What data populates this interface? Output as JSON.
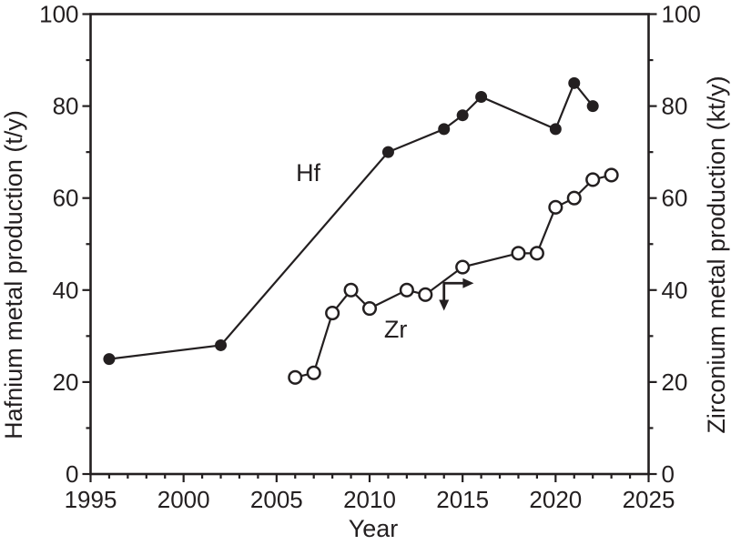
{
  "figure": {
    "background": "#ffffff"
  },
  "chart_data": {
    "type": "line",
    "title": "",
    "xlabel": "Year",
    "ylabel_left": "Hafnium metal production (t/y)",
    "ylabel_right": "Zirconium metal production (kt/y)",
    "xlim": [
      1995,
      2025
    ],
    "ylim_left": [
      0,
      100
    ],
    "ylim_right": [
      0,
      100
    ],
    "x_major_ticks": [
      1995,
      2000,
      2005,
      2010,
      2015,
      2020,
      2025
    ],
    "x_minor_step": 1,
    "y_major_ticks": [
      0,
      20,
      40,
      60,
      80,
      100
    ],
    "y_minor_step": 10,
    "grid": false,
    "legend_position": "none",
    "colors": {
      "ink": "#231f20",
      "background": "#ffffff"
    },
    "series": [
      {
        "name": "Hf",
        "axis": "left",
        "marker": "filled-circle",
        "x": [
          1996,
          2002,
          2011,
          2014,
          2015,
          2016,
          2020,
          2021,
          2022
        ],
        "y": [
          25,
          28,
          70,
          75,
          78,
          82,
          75,
          85,
          80
        ],
        "label": {
          "text": "Hf",
          "x": 2006.7,
          "y": 65.5
        }
      },
      {
        "name": "Zr",
        "axis": "right",
        "marker": "open-circle",
        "x": [
          2006,
          2007,
          2008,
          2009,
          2010,
          2012,
          2013,
          2015,
          2018,
          2019,
          2020,
          2021,
          2022,
          2023
        ],
        "y": [
          21,
          22,
          35,
          40,
          36,
          40,
          39,
          45,
          48,
          48,
          58,
          60,
          64,
          65
        ],
        "label": {
          "text": "Zr",
          "x": 2011.4,
          "y": 31.5
        }
      }
    ],
    "annotation_arrows": {
      "anchor": {
        "x": 2014.0,
        "y": 41.5
      },
      "down_to_y": 35.5,
      "right_to_x": 2015.6
    }
  }
}
